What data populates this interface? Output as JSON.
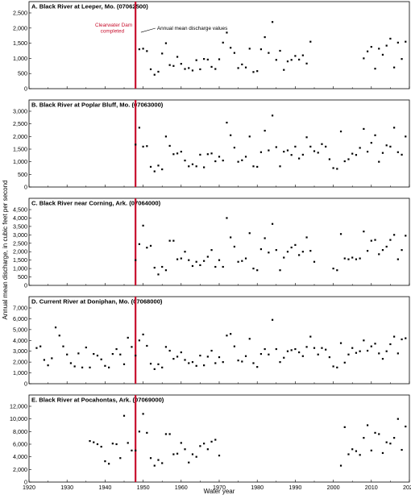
{
  "figure": {
    "ylabel": "Annual mean discharge, in cubic feet per second",
    "xlabel": "Water year",
    "x_ticks": [
      "1920",
      "1930",
      "1940",
      "1950",
      "1960",
      "1970",
      "1980",
      "1990",
      "2000",
      "2010",
      "2020"
    ],
    "marker_color": "#000000",
    "event_line_color": "#c8102e"
  },
  "chart_data": [
    {
      "type": "scatter",
      "title": "A. Black River at Leeper, Mo. (07062500)",
      "xlim": [
        1920,
        2020
      ],
      "ylim": [
        0,
        2500
      ],
      "y_ticks": [
        "0",
        "500",
        "1,000",
        "1,500",
        "2,000",
        "2,500"
      ],
      "vline": {
        "x": 1948,
        "label_line1": "Clearwater Dam",
        "label_line2": "completed"
      },
      "annotation": {
        "text": "Annual mean discharge values",
        "x": 1949,
        "y": 1820
      },
      "x": [
        1949,
        1950,
        1951,
        1952,
        1953,
        1954,
        1955,
        1956,
        1957,
        1958,
        1959,
        1960,
        1961,
        1962,
        1963,
        1964,
        1965,
        1966,
        1967,
        1968,
        1969,
        1970,
        1971,
        1972,
        1973,
        1974,
        1975,
        1976,
        1977,
        1978,
        1979,
        1980,
        1981,
        1982,
        1983,
        1984,
        1985,
        1986,
        1987,
        1988,
        1989,
        1990,
        1991,
        1992,
        1993,
        1994,
        2008,
        2009,
        2010,
        2011,
        2012,
        2013,
        2014,
        2015,
        2016,
        2017,
        2018,
        2019
      ],
      "y": [
        1300,
        1320,
        1240,
        640,
        460,
        560,
        1160,
        1500,
        780,
        750,
        1050,
        820,
        650,
        680,
        600,
        940,
        640,
        980,
        960,
        720,
        650,
        970,
        1520,
        1850,
        1350,
        1180,
        680,
        800,
        700,
        1320,
        550,
        580,
        1300,
        1700,
        1180,
        2200,
        950,
        1250,
        620,
        900,
        950,
        1080,
        960,
        1100,
        830,
        1550,
        1000,
        1230,
        1380,
        660,
        1320,
        1120,
        1420,
        1650,
        700,
        1520,
        980,
        1550
      ]
    },
    {
      "type": "scatter",
      "title": "B. Black River at Poplar Bluff, Mo. (07063000)",
      "xlim": [
        1920,
        2020
      ],
      "ylim": [
        0,
        3000
      ],
      "y_ticks": [
        "0",
        "500",
        "1,000",
        "1,500",
        "2,000",
        "2,500",
        "3,000"
      ],
      "vline": {
        "x": 1948
      },
      "x": [
        1948,
        1949,
        1950,
        1951,
        1952,
        1953,
        1954,
        1955,
        1956,
        1957,
        1958,
        1959,
        1960,
        1961,
        1962,
        1963,
        1964,
        1965,
        1966,
        1967,
        1968,
        1969,
        1970,
        1971,
        1972,
        1973,
        1974,
        1975,
        1976,
        1977,
        1978,
        1979,
        1980,
        1981,
        1982,
        1983,
        1984,
        1985,
        1986,
        1987,
        1988,
        1989,
        1990,
        1991,
        1992,
        1993,
        1994,
        1995,
        1996,
        1997,
        1998,
        1999,
        2000,
        2001,
        2002,
        2003,
        2004,
        2005,
        2006,
        2007,
        2008,
        2009,
        2010,
        2011,
        2012,
        2013,
        2014,
        2015,
        2016,
        2017,
        2018,
        2019
      ],
      "y": [
        1680,
        2350,
        1600,
        1620,
        800,
        620,
        850,
        700,
        2000,
        1630,
        1300,
        1330,
        1400,
        1050,
        820,
        900,
        820,
        1280,
        780,
        1300,
        1330,
        1020,
        1200,
        1050,
        2550,
        2050,
        1560,
        1000,
        1060,
        1200,
        2000,
        820,
        800,
        1380,
        2230,
        1450,
        2830,
        1580,
        820,
        1400,
        1450,
        1270,
        1600,
        1130,
        1280,
        1970,
        1600,
        1420,
        1360,
        1700,
        1600,
        1100,
        750,
        720,
        2200,
        1020,
        1100,
        1320,
        1270,
        1550,
        2300,
        1400,
        1750,
        2050,
        1000,
        1350,
        1650,
        1600,
        2350,
        1380,
        1280,
        2000
      ]
    },
    {
      "type": "scatter",
      "title": "C. Black River near Corning, Ark. (07064000)",
      "xlim": [
        1920,
        2020
      ],
      "ylim": [
        0,
        4500
      ],
      "y_ticks": [
        "0",
        "500",
        "1,000",
        "1,500",
        "2,000",
        "2,500",
        "3,000",
        "3,500",
        "4,000",
        "4,500"
      ],
      "vline": {
        "x": 1948
      },
      "x": [
        1948,
        1949,
        1950,
        1951,
        1952,
        1953,
        1954,
        1955,
        1956,
        1957,
        1958,
        1959,
        1960,
        1961,
        1962,
        1963,
        1964,
        1965,
        1966,
        1967,
        1968,
        1969,
        1970,
        1971,
        1972,
        1973,
        1974,
        1975,
        1976,
        1977,
        1978,
        1979,
        1980,
        1981,
        1982,
        1983,
        1984,
        1985,
        1986,
        1987,
        1988,
        1989,
        1990,
        1991,
        1992,
        1993,
        1994,
        1995,
        2000,
        2001,
        2002,
        2003,
        2004,
        2005,
        2006,
        2007,
        2008,
        2009,
        2010,
        2011,
        2012,
        2013,
        2014,
        2015,
        2016,
        2017,
        2018,
        2019
      ],
      "y": [
        1500,
        2450,
        3550,
        2240,
        2350,
        1050,
        650,
        1100,
        900,
        2650,
        2650,
        1550,
        1600,
        2000,
        1500,
        1150,
        1400,
        1200,
        1450,
        1700,
        2100,
        1100,
        1500,
        1100,
        4000,
        2850,
        2300,
        1400,
        1450,
        1600,
        3100,
        1000,
        900,
        2150,
        2800,
        1950,
        3650,
        2100,
        900,
        1650,
        2000,
        2250,
        2400,
        1800,
        2000,
        2850,
        2050,
        1400,
        1000,
        900,
        3050,
        1600,
        1550,
        1650,
        1550,
        1600,
        3200,
        2050,
        2650,
        2700,
        1850,
        2100,
        2300,
        2700,
        3000,
        1550,
        2100,
        2950
      ]
    },
    {
      "type": "scatter",
      "title": "D. Current River at Doniphan, Mo. (07068000)",
      "xlim": [
        1920,
        2020
      ],
      "ylim": [
        0,
        7000
      ],
      "y_ticks": [
        "0",
        "1,000",
        "2,000",
        "3,000",
        "4,000",
        "5,000",
        "6,000",
        "7,000"
      ],
      "vline": {
        "x": 1948
      },
      "x": [
        1922,
        1923,
        1924,
        1925,
        1926,
        1927,
        1928,
        1929,
        1930,
        1931,
        1932,
        1933,
        1934,
        1935,
        1936,
        1937,
        1938,
        1939,
        1940,
        1941,
        1942,
        1943,
        1944,
        1945,
        1946,
        1947,
        1948,
        1949,
        1950,
        1951,
        1952,
        1953,
        1954,
        1955,
        1956,
        1957,
        1958,
        1959,
        1960,
        1961,
        1962,
        1963,
        1964,
        1965,
        1966,
        1967,
        1968,
        1969,
        1970,
        1971,
        1972,
        1973,
        1974,
        1975,
        1976,
        1977,
        1978,
        1979,
        1980,
        1981,
        1982,
        1983,
        1984,
        1985,
        1986,
        1987,
        1988,
        1989,
        1990,
        1991,
        1992,
        1993,
        1994,
        1995,
        1996,
        1997,
        1998,
        1999,
        2000,
        2001,
        2002,
        2003,
        2004,
        2005,
        2006,
        2007,
        2008,
        2009,
        2010,
        2011,
        2012,
        2013,
        2014,
        2015,
        2016,
        2017,
        2018,
        2019
      ],
      "y": [
        3300,
        3450,
        2200,
        1700,
        2350,
        5200,
        4450,
        3450,
        2700,
        1900,
        1600,
        2800,
        1500,
        3350,
        1500,
        2750,
        2600,
        2250,
        1650,
        1500,
        2750,
        3200,
        2700,
        1800,
        4250,
        3400,
        2600,
        4000,
        4550,
        3500,
        1850,
        1350,
        1800,
        1500,
        3400,
        3050,
        2300,
        2500,
        2900,
        2200,
        1900,
        2000,
        1650,
        2600,
        1700,
        2500,
        3050,
        1900,
        2450,
        2000,
        4450,
        4600,
        3450,
        2150,
        2050,
        2550,
        4150,
        1900,
        1550,
        2750,
        3200,
        2700,
        5900,
        3200,
        2000,
        2400,
        3000,
        3100,
        3200,
        2900,
        2550,
        3400,
        4350,
        3300,
        2700,
        3300,
        3150,
        2450,
        1600,
        1500,
        3750,
        1950,
        2700,
        3300,
        2850,
        3000,
        4000,
        3050,
        3450,
        3700,
        2800,
        2300,
        3000,
        3650,
        4350,
        2800,
        4100,
        4200
      ]
    },
    {
      "type": "scatter",
      "title": "E. Black River at Pocahontas, Ark. (07069000)",
      "xlim": [
        1920,
        2020
      ],
      "ylim": [
        0,
        12000
      ],
      "y_ticks": [
        "0",
        "2,000",
        "4,000",
        "6,000",
        "8,000",
        "10,000",
        "12,000"
      ],
      "vline": {
        "x": 1948
      },
      "x": [
        1936,
        1937,
        1938,
        1939,
        1940,
        1941,
        1942,
        1943,
        1944,
        1945,
        1946,
        1947,
        1948,
        1949,
        1950,
        1951,
        1952,
        1953,
        1954,
        1955,
        1956,
        1957,
        1958,
        1959,
        1960,
        1961,
        1962,
        1963,
        1964,
        1965,
        1966,
        1967,
        1968,
        1969,
        1970,
        2002,
        2003,
        2004,
        2005,
        2006,
        2007,
        2008,
        2009,
        2010,
        2011,
        2012,
        2013,
        2014,
        2015,
        2016,
        2017,
        2018,
        2019
      ],
      "y": [
        6500,
        6300,
        6000,
        5600,
        3300,
        2900,
        6100,
        6000,
        3800,
        10500,
        6200,
        5000,
        5000,
        8000,
        10800,
        7800,
        3800,
        2600,
        3500,
        3000,
        7600,
        7600,
        4400,
        4500,
        6200,
        5200,
        3100,
        4400,
        4000,
        5700,
        6100,
        5200,
        6400,
        6700,
        4200,
        2600,
        8700,
        4400,
        5200,
        4900,
        4300,
        7000,
        9000,
        5000,
        7800,
        7600,
        4600,
        6300,
        6100,
        7000,
        10000,
        5100,
        8800
      ]
    }
  ]
}
